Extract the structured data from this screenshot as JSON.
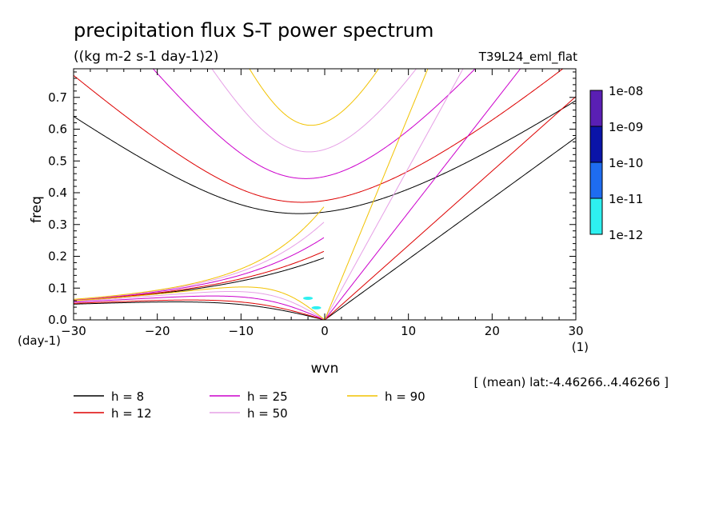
{
  "chart_data": {
    "type": "line",
    "title": "precipitation flux S-T power spectrum",
    "subtitle": "((kg m-2 s-1 day-1)2)",
    "run_label": "T39L24_eml_flat",
    "xlabel": "wvn",
    "ylabel": "freq",
    "x_unit": "(1)",
    "y_unit": "(day-1)",
    "xlim": [
      -30,
      30
    ],
    "ylim": [
      0,
      0.79
    ],
    "x_ticks": [
      "−30",
      "−20",
      "−10",
      "0",
      "10",
      "20",
      "30"
    ],
    "x_tick_values": [
      -30,
      -20,
      -10,
      0,
      10,
      20,
      30
    ],
    "y_ticks": [
      "0.0",
      "0.1",
      "0.2",
      "0.3",
      "0.4",
      "0.5",
      "0.6",
      "0.7"
    ],
    "y_tick_values": [
      0,
      0.1,
      0.2,
      0.3,
      0.4,
      0.5,
      0.6,
      0.7
    ],
    "annotation": "[ (mean) lat:-4.46266..4.46266 ]",
    "colorbar": {
      "labels": [
        "1e-08",
        "1e-09",
        "1e-10",
        "1e-11",
        "1e-12"
      ],
      "colors": [
        "#5a1fb4",
        "#0a14a8",
        "#1e6cf0",
        "#2ef0f0"
      ]
    },
    "series": [
      {
        "name": "h =  8",
        "h": 8,
        "color": "#000000"
      },
      {
        "name": "h = 12",
        "h": 12,
        "color": "#dd0000"
      },
      {
        "name": "h = 25",
        "h": 25,
        "color": "#cc00cc"
      },
      {
        "name": "h = 50",
        "h": 50,
        "color": "#e6a0e6"
      },
      {
        "name": "h = 90",
        "h": 90,
        "color": "#f2c200"
      }
    ],
    "spectral_blobs": [
      {
        "x": -1.0,
        "y": 0.038,
        "color": "#2ef0f0"
      },
      {
        "x": -2.0,
        "y": 0.068,
        "color": "#2ef0f0"
      }
    ]
  }
}
